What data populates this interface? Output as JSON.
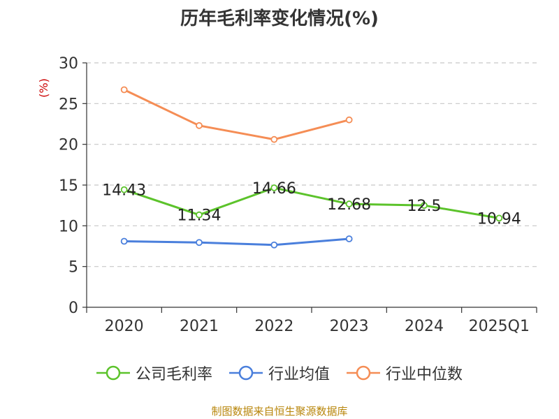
{
  "chart_data": {
    "type": "line",
    "title": "历年毛利率变化情况(%)",
    "ylabel": "(%)",
    "categories": [
      "2020",
      "2021",
      "2022",
      "2023",
      "2024",
      "2025Q1"
    ],
    "ylim": [
      0,
      30
    ],
    "yticks": [
      0,
      5,
      10,
      15,
      20,
      25,
      30
    ],
    "grid": true,
    "legend_position": "bottom",
    "series": [
      {
        "name": "公司毛利率",
        "color": "#5cc32b",
        "values": [
          14.43,
          11.34,
          14.66,
          12.68,
          12.5,
          10.94
        ],
        "labels": [
          "14.43",
          "11.34",
          "14.66",
          "12.68",
          "12.5",
          "10.94"
        ]
      },
      {
        "name": "行业均值",
        "color": "#4a7fdc",
        "values": [
          8.1,
          7.95,
          7.65,
          8.4,
          null,
          null
        ],
        "labels": []
      },
      {
        "name": "行业中位数",
        "color": "#f58d55",
        "values": [
          26.7,
          22.3,
          20.6,
          23.0,
          null,
          null
        ],
        "labels": []
      }
    ]
  },
  "footer": {
    "source": "制图数据来自恒生聚源数据库"
  }
}
